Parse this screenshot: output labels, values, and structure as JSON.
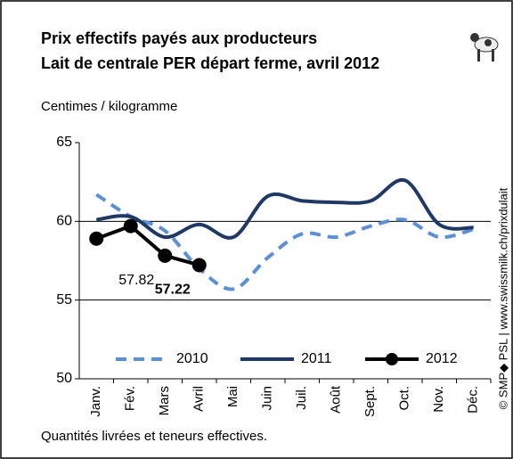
{
  "chart_data": {
    "type": "line",
    "title": "Prix effectifs payés aux producteurs",
    "subtitle": "Lait de centrale PER départ ferme, avril 2012",
    "y_label": "Centimes / kilogramme",
    "note": "Quantités livrées et teneurs effectives.",
    "source": "© SMP◆ PSL | www.swissmilk.ch/prixdulait",
    "categories": [
      "Janv.",
      "Fév.",
      "Mars",
      "Avril",
      "Mai",
      "Juin",
      "Juil.",
      "Août",
      "Sept.",
      "Oct.",
      "Nov.",
      "Déc."
    ],
    "series": [
      {
        "name": "2010",
        "color": "#5b8fd6",
        "dashed": true,
        "values": [
          61.7,
          60.3,
          59.4,
          57.0,
          55.7,
          57.7,
          59.2,
          59.0,
          59.7,
          60.1,
          59.0,
          59.5
        ]
      },
      {
        "name": "2011",
        "color": "#1f3864",
        "values": [
          60.1,
          60.3,
          59.0,
          59.8,
          59.0,
          61.6,
          61.3,
          61.2,
          61.3,
          62.6,
          59.8,
          59.6
        ]
      },
      {
        "name": "2012",
        "color": "#000000",
        "markers": true,
        "values": [
          58.9,
          59.7,
          57.82,
          57.22,
          null,
          null,
          null,
          null,
          null,
          null,
          null,
          null
        ],
        "value_labels": [
          null,
          null,
          "57.82",
          "57.22",
          null,
          null,
          null,
          null,
          null,
          null,
          null,
          null
        ]
      }
    ],
    "ylim": [
      50,
      65
    ],
    "yticks": [
      50,
      55,
      60,
      65
    ],
    "grid": true
  }
}
